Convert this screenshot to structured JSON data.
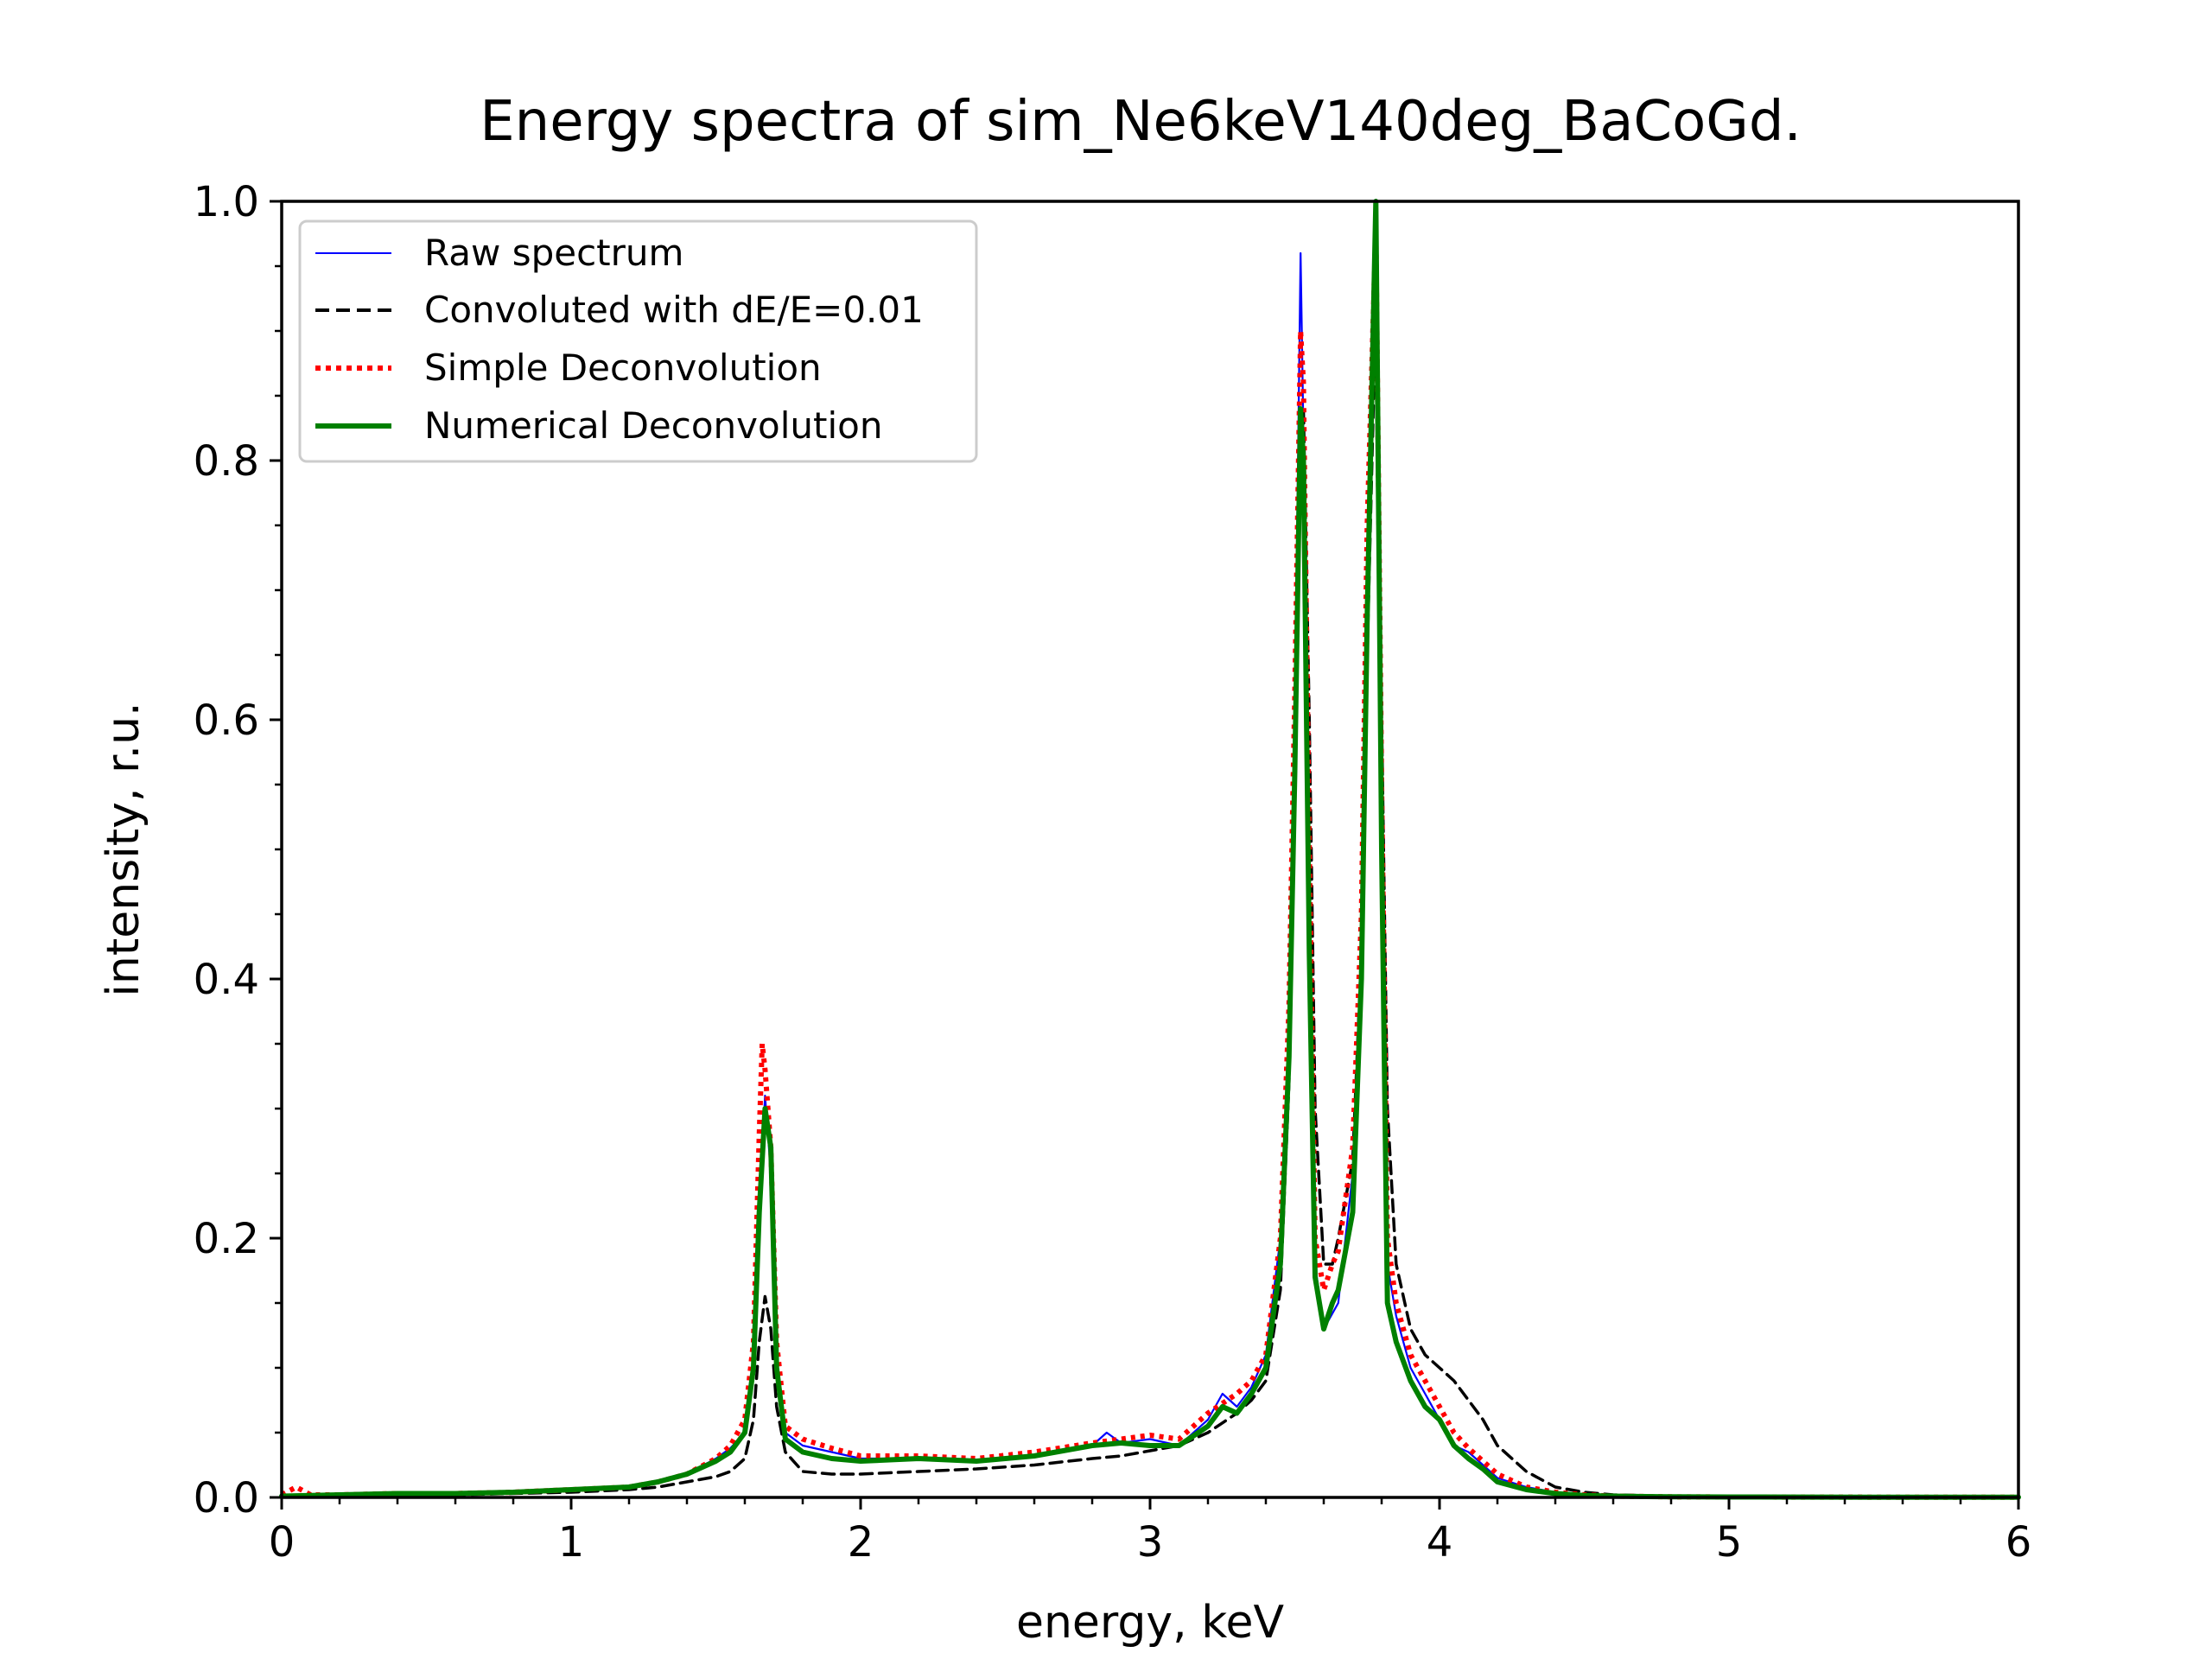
{
  "chart_data": {
    "type": "line",
    "title": "Energy spectra of sim_Ne6keV140deg_BaCoGd.",
    "xlabel": "energy, keV",
    "ylabel": "intensity, r.u.",
    "xlim": [
      0,
      6
    ],
    "ylim": [
      0,
      1.0
    ],
    "xticks": [
      0,
      1,
      2,
      3,
      4,
      5,
      6
    ],
    "xtick_labels": [
      "0",
      "1",
      "2",
      "3",
      "4",
      "5",
      "6"
    ],
    "yticks": [
      0.0,
      0.2,
      0.4,
      0.6,
      0.8,
      1.0
    ],
    "ytick_labels": [
      "0.0",
      "0.2",
      "0.4",
      "0.6",
      "0.8",
      "1.0"
    ],
    "grid": false,
    "legend_position": "top-left",
    "series": [
      {
        "name": "Raw spectrum",
        "color": "#0000ff",
        "style": "solid-thin",
        "x": [
          0,
          0.2,
          0.4,
          0.6,
          0.8,
          1.0,
          1.2,
          1.3,
          1.4,
          1.5,
          1.55,
          1.6,
          1.63,
          1.65,
          1.67,
          1.69,
          1.71,
          1.74,
          1.8,
          1.9,
          2.0,
          2.2,
          2.4,
          2.6,
          2.8,
          2.85,
          2.9,
          3.0,
          3.1,
          3.2,
          3.25,
          3.3,
          3.35,
          3.4,
          3.45,
          3.48,
          3.5,
          3.52,
          3.53,
          3.55,
          3.57,
          3.6,
          3.65,
          3.7,
          3.73,
          3.75,
          3.78,
          3.8,
          3.82,
          3.85,
          3.9,
          3.95,
          4.0,
          4.05,
          4.1,
          4.15,
          4.2,
          4.3,
          4.4,
          4.5,
          4.6,
          4.8,
          5.0,
          5.5,
          6.0
        ],
        "y": [
          0.002,
          0.002,
          0.003,
          0.003,
          0.004,
          0.006,
          0.008,
          0.012,
          0.018,
          0.03,
          0.038,
          0.05,
          0.1,
          0.22,
          0.31,
          0.25,
          0.1,
          0.05,
          0.04,
          0.035,
          0.03,
          0.03,
          0.028,
          0.032,
          0.04,
          0.05,
          0.042,
          0.045,
          0.04,
          0.06,
          0.08,
          0.07,
          0.085,
          0.11,
          0.2,
          0.35,
          0.6,
          0.96,
          0.82,
          0.45,
          0.18,
          0.13,
          0.15,
          0.25,
          0.42,
          0.7,
          1.0,
          0.55,
          0.18,
          0.14,
          0.1,
          0.08,
          0.06,
          0.04,
          0.035,
          0.025,
          0.015,
          0.008,
          0.004,
          0.002,
          0.001,
          0.0005,
          0.0003,
          0.0002,
          0.0001
        ]
      },
      {
        "name": "Convoluted with dE/E=0.01",
        "color": "#000000",
        "style": "dashed",
        "x": [
          0,
          0.2,
          0.4,
          0.6,
          0.8,
          1.0,
          1.2,
          1.3,
          1.4,
          1.5,
          1.55,
          1.6,
          1.63,
          1.65,
          1.67,
          1.69,
          1.71,
          1.74,
          1.8,
          1.9,
          2.0,
          2.2,
          2.4,
          2.6,
          2.8,
          2.9,
          3.0,
          3.1,
          3.2,
          3.3,
          3.35,
          3.4,
          3.45,
          3.48,
          3.5,
          3.52,
          3.53,
          3.55,
          3.57,
          3.6,
          3.63,
          3.65,
          3.7,
          3.73,
          3.75,
          3.78,
          3.8,
          3.82,
          3.85,
          3.9,
          3.95,
          4.0,
          4.05,
          4.1,
          4.15,
          4.2,
          4.3,
          4.4,
          4.5,
          4.6,
          4.8,
          5.0,
          5.5,
          6.0
        ],
        "y": [
          0.001,
          0.001,
          0.002,
          0.002,
          0.003,
          0.004,
          0.006,
          0.008,
          0.012,
          0.016,
          0.02,
          0.03,
          0.06,
          0.12,
          0.155,
          0.13,
          0.07,
          0.035,
          0.02,
          0.018,
          0.018,
          0.02,
          0.022,
          0.025,
          0.03,
          0.032,
          0.036,
          0.04,
          0.05,
          0.065,
          0.075,
          0.09,
          0.16,
          0.32,
          0.55,
          0.82,
          0.84,
          0.6,
          0.3,
          0.18,
          0.18,
          0.2,
          0.26,
          0.42,
          0.65,
          0.92,
          0.6,
          0.3,
          0.18,
          0.13,
          0.11,
          0.1,
          0.09,
          0.075,
          0.06,
          0.04,
          0.02,
          0.008,
          0.004,
          0.002,
          0.001,
          0.0005,
          0.0003,
          0.0002
        ]
      },
      {
        "name": "Simple Deconvolution",
        "color": "#ff0000",
        "style": "dotted",
        "x": [
          0,
          0.05,
          0.1,
          0.2,
          0.4,
          0.6,
          0.8,
          1.0,
          1.2,
          1.3,
          1.4,
          1.5,
          1.55,
          1.6,
          1.63,
          1.65,
          1.66,
          1.67,
          1.69,
          1.71,
          1.74,
          1.8,
          1.9,
          2.0,
          2.2,
          2.4,
          2.6,
          2.8,
          2.9,
          3.0,
          3.1,
          3.2,
          3.3,
          3.35,
          3.4,
          3.45,
          3.48,
          3.5,
          3.52,
          3.53,
          3.55,
          3.57,
          3.6,
          3.63,
          3.65,
          3.7,
          3.73,
          3.75,
          3.78,
          3.8,
          3.82,
          3.85,
          3.9,
          3.95,
          4.0,
          4.05,
          4.1,
          4.15,
          4.2,
          4.3,
          4.4,
          4.5,
          4.6,
          4.8,
          5.0,
          5.5,
          6.0
        ],
        "y": [
          0.002,
          0.008,
          0.002,
          0.002,
          0.003,
          0.003,
          0.004,
          0.006,
          0.008,
          0.012,
          0.018,
          0.03,
          0.04,
          0.06,
          0.12,
          0.28,
          0.35,
          0.33,
          0.27,
          0.12,
          0.055,
          0.045,
          0.038,
          0.032,
          0.032,
          0.03,
          0.035,
          0.042,
          0.045,
          0.048,
          0.045,
          0.065,
          0.08,
          0.09,
          0.11,
          0.2,
          0.38,
          0.62,
          0.9,
          0.86,
          0.5,
          0.2,
          0.16,
          0.18,
          0.19,
          0.27,
          0.45,
          0.75,
          0.98,
          0.55,
          0.2,
          0.15,
          0.11,
          0.09,
          0.07,
          0.05,
          0.038,
          0.028,
          0.018,
          0.008,
          0.004,
          0.002,
          0.001,
          0.0005,
          0.0003,
          0.0002,
          0.0001
        ]
      },
      {
        "name": "Numerical Deconvolution",
        "color": "#008000",
        "style": "solid-thick",
        "x": [
          0,
          0.2,
          0.4,
          0.6,
          0.8,
          1.0,
          1.2,
          1.3,
          1.4,
          1.5,
          1.55,
          1.6,
          1.63,
          1.65,
          1.67,
          1.69,
          1.71,
          1.74,
          1.8,
          1.9,
          2.0,
          2.2,
          2.4,
          2.6,
          2.8,
          2.9,
          3.0,
          3.1,
          3.2,
          3.25,
          3.3,
          3.35,
          3.4,
          3.45,
          3.48,
          3.5,
          3.52,
          3.53,
          3.55,
          3.57,
          3.6,
          3.63,
          3.65,
          3.7,
          3.73,
          3.75,
          3.78,
          3.8,
          3.82,
          3.85,
          3.9,
          3.95,
          4.0,
          4.05,
          4.1,
          4.15,
          4.2,
          4.3,
          4.4,
          4.5,
          4.6,
          4.8,
          5.0,
          5.5,
          6.0
        ],
        "y": [
          0.001,
          0.002,
          0.003,
          0.003,
          0.004,
          0.006,
          0.008,
          0.012,
          0.018,
          0.028,
          0.035,
          0.05,
          0.1,
          0.22,
          0.3,
          0.27,
          0.1,
          0.045,
          0.035,
          0.03,
          0.028,
          0.03,
          0.028,
          0.032,
          0.04,
          0.042,
          0.04,
          0.04,
          0.055,
          0.07,
          0.065,
          0.08,
          0.1,
          0.18,
          0.34,
          0.56,
          0.84,
          0.8,
          0.42,
          0.17,
          0.13,
          0.15,
          0.16,
          0.22,
          0.4,
          0.68,
          1.0,
          0.5,
          0.15,
          0.12,
          0.09,
          0.07,
          0.06,
          0.04,
          0.03,
          0.022,
          0.012,
          0.006,
          0.003,
          0.0015,
          0.001,
          0.0005,
          0.0003,
          0.0002,
          0.0001
        ]
      }
    ]
  }
}
